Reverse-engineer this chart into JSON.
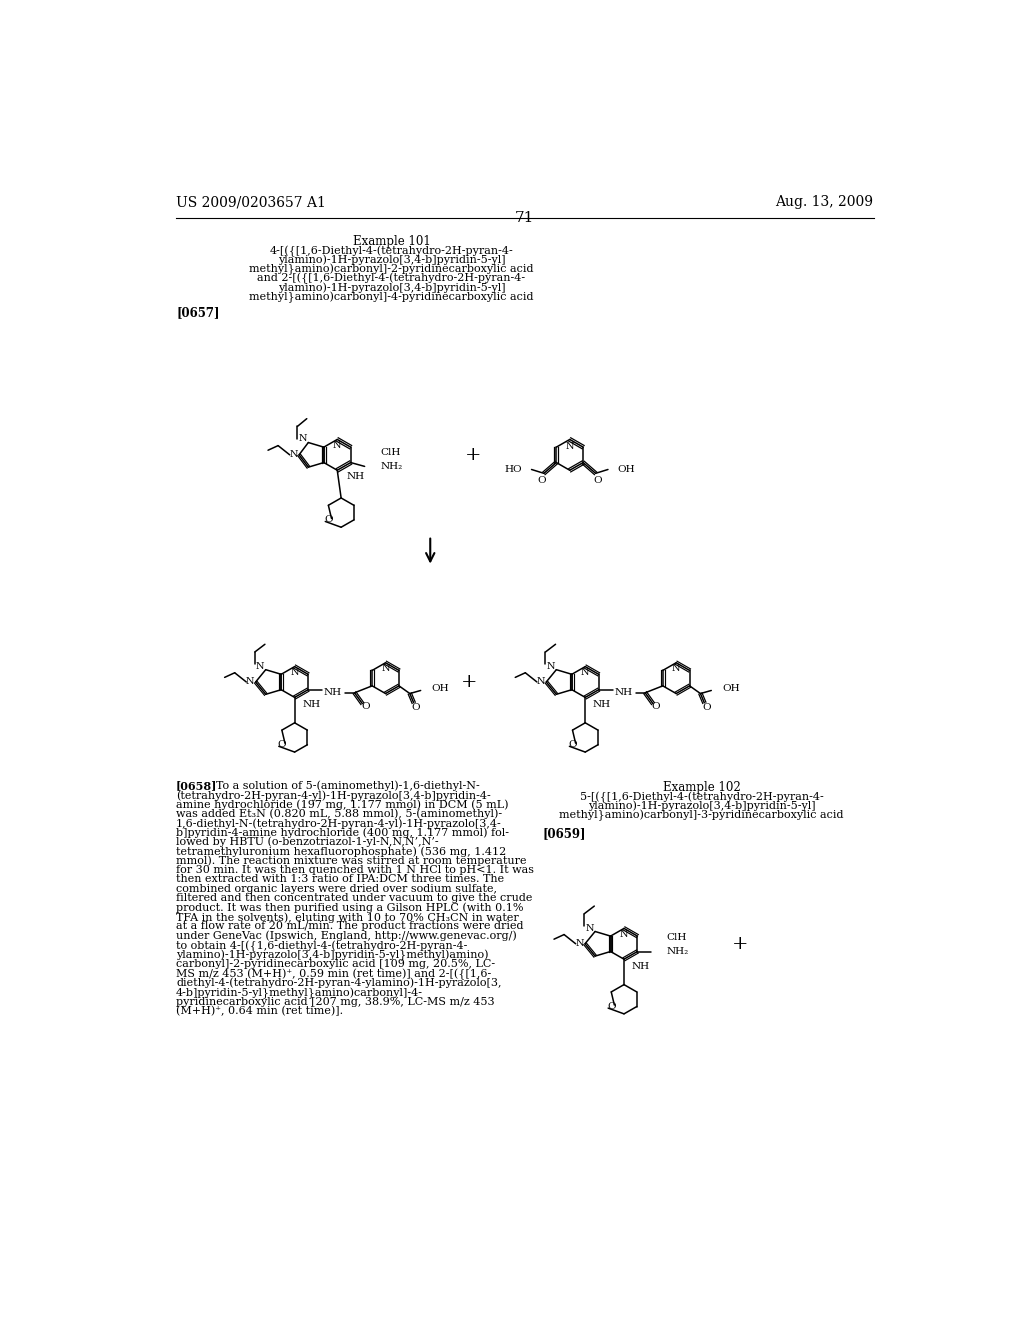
{
  "background_color": "#ffffff",
  "page_number": "71",
  "header_left": "US 2009/0203657 A1",
  "header_right": "Aug. 13, 2009",
  "example101_title": "Example 101",
  "example101_lines": [
    "4-[({[1,6-Diethyl-4-(tetrahydro-2H-pyran-4-",
    "ylamino)-1H-pyrazolo[3,4-b]pyridin-5-yl]",
    "methyl}amino)carbonyl]-2-pyridinecarboxylic acid",
    "and 2-[({[1,6-Diethyl-4-(tetrahydro-2H-pyran-4-",
    "ylamino)-1H-pyrazolo[3,4-b]pyridin-5-yl]",
    "methyl}amino)carbonyl]-4-pyridinecarboxylic acid"
  ],
  "para0657": "[0657]",
  "para0658_lines": [
    "  To a solution of 5-(aminomethyl)-1,6-diethyl-N-",
    "(tetrahydro-2H-pyran-4-yl)-1H-pyrazolo[3,4-b]pyridin-4-",
    "amine hydrochloride (197 mg, 1.177 mmol) in DCM (5 mL)",
    "was added Et₃N (0.820 mL, 5.88 mmol), 5-(aminomethyl)-",
    "1,6-diethyl-N-(tetrahydro-2H-pyran-4-yl)-1H-pyrazolo[3,4-",
    "b]pyridin-4-amine hydrochloride (400 mg, 1.177 mmol) fol-",
    "lowed by HBTU (o-benzotriazol-1-yl-N,N,N’,N’-",
    "tetramethyluronium hexafluorophosphate) (536 mg, 1.412",
    "mmol). The reaction mixture was stirred at room temperature",
    "for 30 min. It was then quenched with 1 N HCl to pH<1. It was",
    "then extracted with 1:3 ratio of IPA:DCM three times. The",
    "combined organic layers were dried over sodium sulfate,",
    "filtered and then concentrated under vacuum to give the crude",
    "product. It was then purified using a Gilson HPLC (with 0.1%",
    "TFA in the solvents), eluting with 10 to 70% CH₃CN in water",
    "at a flow rate of 20 mL/min. The product fractions were dried",
    "under GeneVac (Ipswich, England, http://www.genevac.org/)",
    "to obtain 4-[({1,6-diethyl-4-(tetrahydro-2H-pyran-4-",
    "ylamino)-1H-pyrazolo[3,4-b]pyridin-5-yl}methyl)amino)",
    "carbonyl]-2-pyridinecarboxylic acid [109 mg, 20.5%, LC-",
    "MS m/z 453 (M+H)⁺, 0.59 min (ret time)] and 2-[({[1,6-",
    "diethyl-4-(tetrahydro-2H-pyran-4-ylamino)-1H-pyrazolo[3,",
    "4-b]pyridin-5-yl}methyl}amino)carbonyl]-4-",
    "pyridinecarboxylic acid [207 mg, 38.9%, LC-MS m/z 453",
    "(M+H)⁺, 0.64 min (ret time)]."
  ],
  "example102_title": "Example 102",
  "example102_lines": [
    "5-[({[1,6-Diethyl-4-(tetrahydro-2H-pyran-4-",
    "ylamino)-1H-pyrazolo[3,4-b]pyridin-5-yl]",
    "methyl}amino)carbonyl]-3-pyridinecarboxylic acid"
  ],
  "para0659": "[0659]",
  "text_color": "#000000",
  "font_size_header": 10,
  "font_size_body": 8.0,
  "font_size_page_num": 11
}
